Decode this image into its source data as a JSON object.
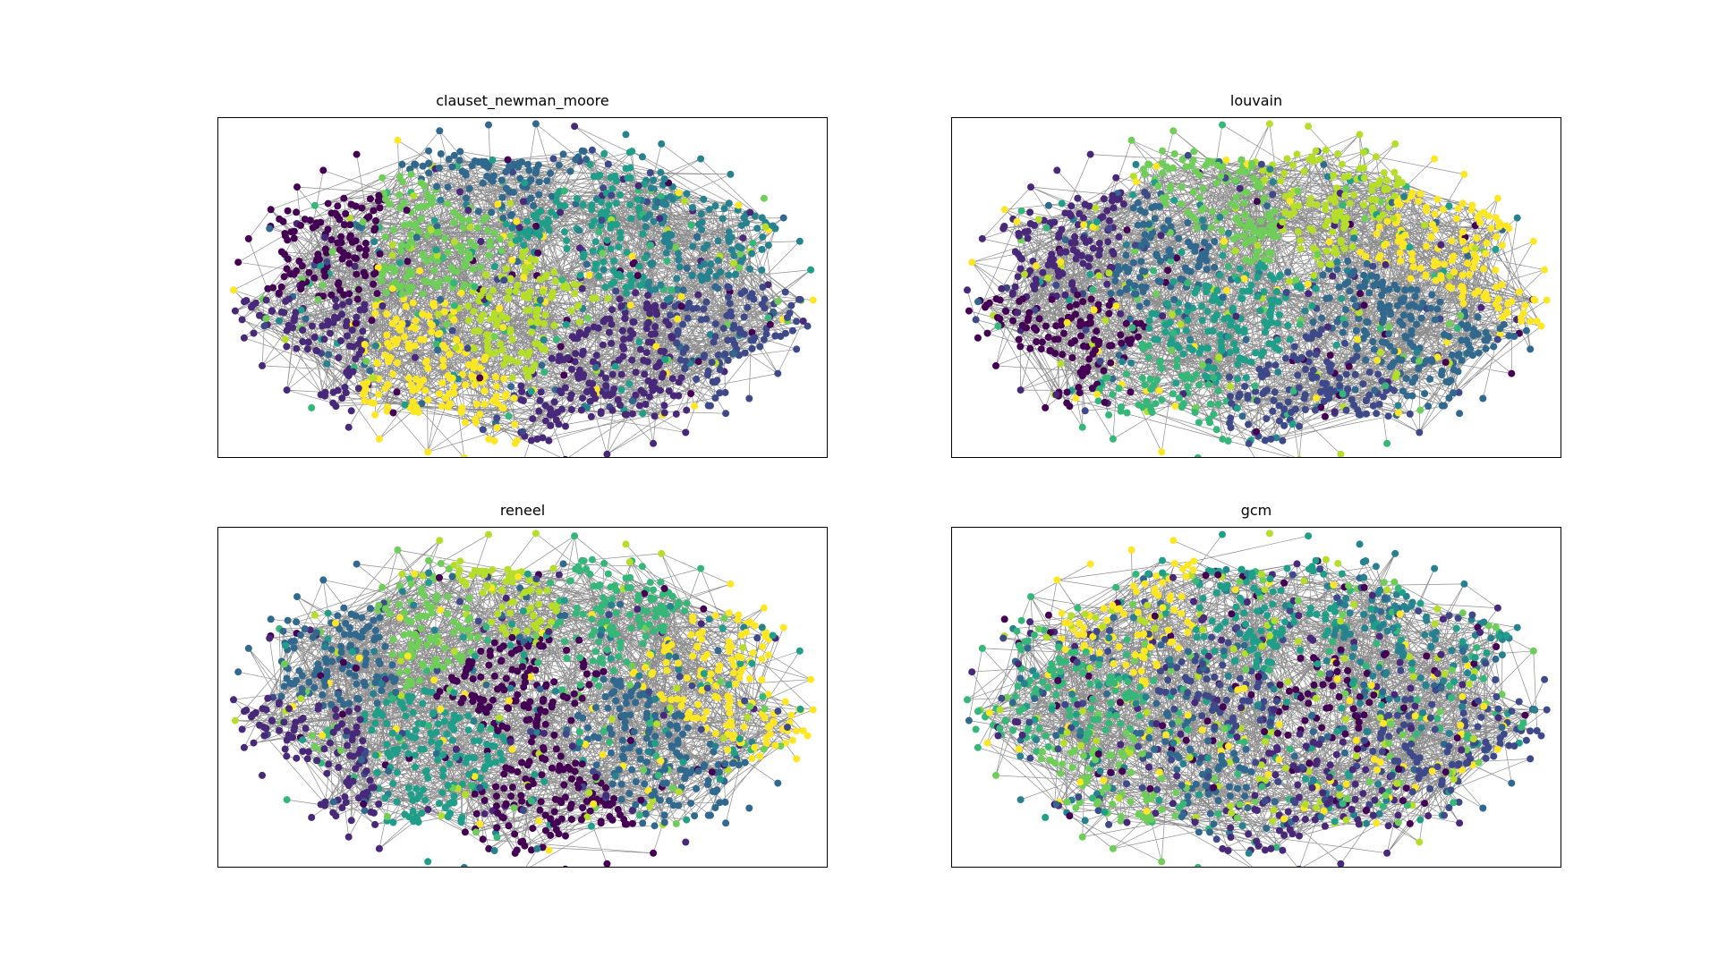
{
  "figure": {
    "title": ""
  },
  "chart_data": [
    {
      "type": "scatter",
      "subtype": "network-graph",
      "title": "clauset_newman_moore",
      "node_count": 1500,
      "colormap": "viridis",
      "edge_color": "#000000",
      "community_palette": [
        "#440154",
        "#482878",
        "#3e4989",
        "#31688e",
        "#26828e",
        "#1f9e89",
        "#35b779",
        "#6ece58",
        "#b5de2b",
        "#fde725"
      ]
    },
    {
      "type": "scatter",
      "subtype": "network-graph",
      "title": "louvain",
      "node_count": 1500,
      "colormap": "viridis",
      "edge_color": "#000000",
      "community_palette": [
        "#440154",
        "#482878",
        "#3e4989",
        "#31688e",
        "#26828e",
        "#1f9e89",
        "#35b779",
        "#6ece58",
        "#b5de2b",
        "#fde725"
      ]
    },
    {
      "type": "scatter",
      "subtype": "network-graph",
      "title": "reneel",
      "node_count": 1500,
      "colormap": "viridis",
      "edge_color": "#000000",
      "community_palette": [
        "#440154",
        "#482878",
        "#3e4989",
        "#31688e",
        "#26828e",
        "#1f9e89",
        "#35b779",
        "#6ece58",
        "#b5de2b",
        "#fde725"
      ]
    },
    {
      "type": "scatter",
      "subtype": "network-graph",
      "title": "gcm",
      "node_count": 1500,
      "colormap": "viridis",
      "edge_color": "#000000",
      "community_palette": [
        "#440154",
        "#482878",
        "#3e4989",
        "#31688e",
        "#26828e",
        "#1f9e89",
        "#35b779",
        "#6ece58",
        "#b5de2b",
        "#fde725"
      ]
    }
  ]
}
